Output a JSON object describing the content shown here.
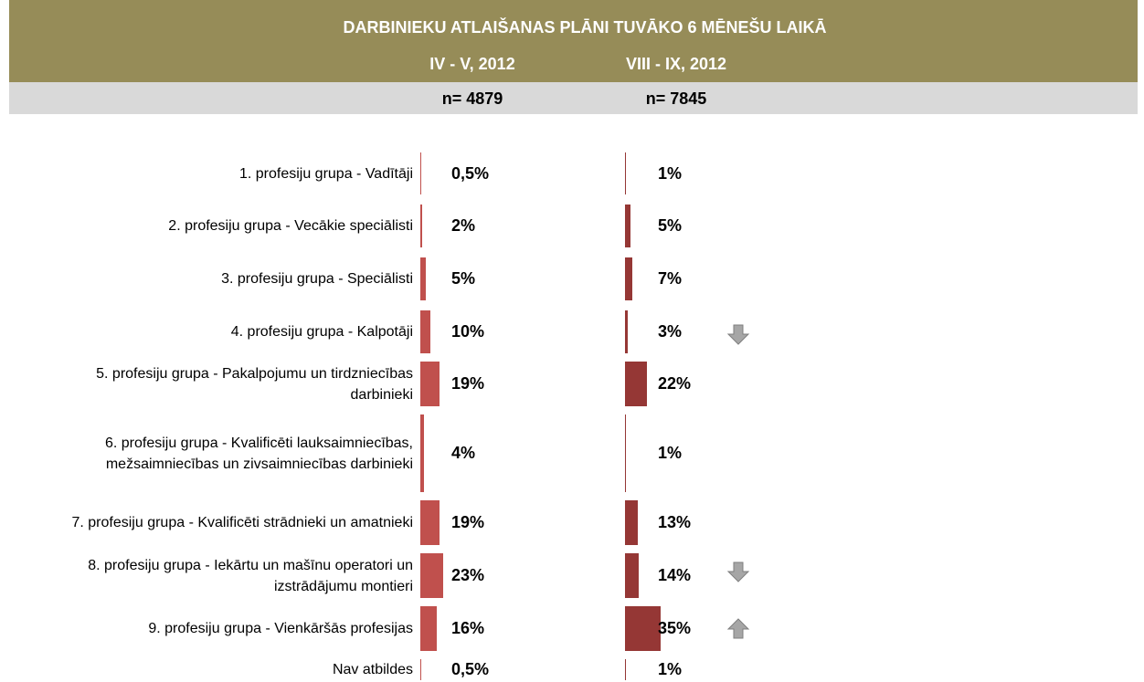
{
  "chart_data": {
    "type": "bar",
    "title": "DARBINIEKU ATLAIŠANAS PLĀNI TUVĀKO 6 MĒNEŠU LAIKĀ",
    "categories": [
      "1. profesiju grupa - Vadītāji",
      "2. profesiju grupa - Vecākie speciālisti",
      "3. profesiju grupa - Speciālisti",
      "4. profesiju grupa - Kalpotāji",
      "5. profesiju grupa - Pakalpojumu un tirdzniecības darbinieki",
      "6. profesiju grupa - Kvalificēti lauksaimniecības, mežsaimniecības un zivsaimniecības darbinieki",
      "7. profesiju grupa - Kvalificēti strādnieki un amatnieki",
      "8. profesiju grupa - Iekārtu un mašīnu operatori un izstrādājumu montieri",
      "9. profesiju grupa - Vienkāršās profesijas",
      "Nav atbildes"
    ],
    "series": [
      {
        "name": "IV - V, 2012",
        "sample": "n= 4879",
        "color": "#c0504d",
        "values": [
          0.5,
          2,
          5,
          10,
          19,
          4,
          19,
          23,
          16,
          0.5
        ],
        "value_labels": [
          "0,5%",
          "2%",
          "5%",
          "10%",
          "19%",
          "4%",
          "19%",
          "23%",
          "16%",
          "0,5%"
        ]
      },
      {
        "name": "VIII - IX, 2012",
        "sample": "n= 7845",
        "color": "#953735",
        "values": [
          1,
          5,
          7,
          3,
          22,
          1,
          13,
          14,
          35,
          1
        ],
        "value_labels": [
          "1%",
          "5%",
          "7%",
          "3%",
          "22%",
          "1%",
          "13%",
          "14%",
          "35%",
          "1%"
        ]
      }
    ]
  }
}
